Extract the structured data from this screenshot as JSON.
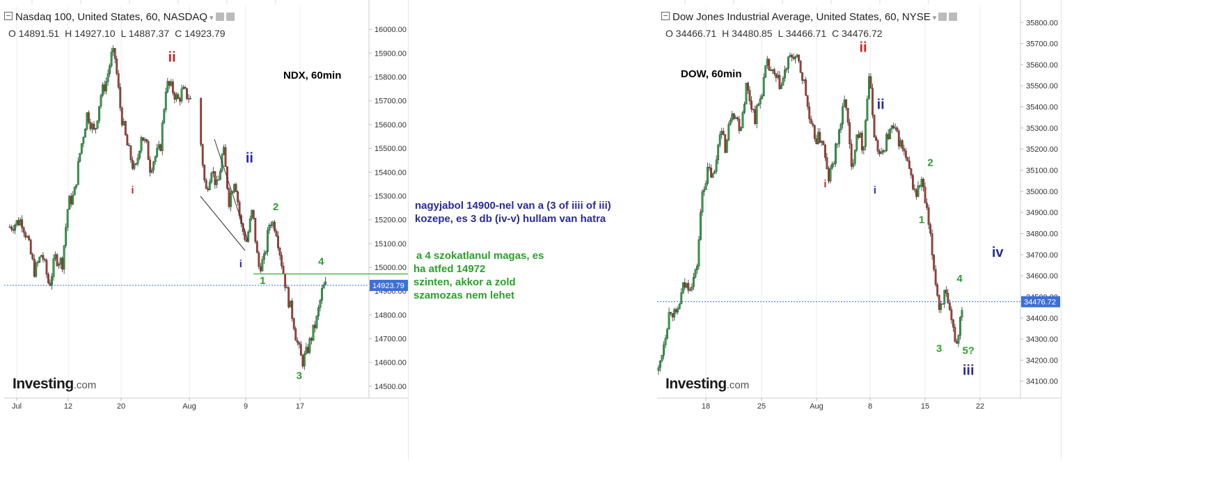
{
  "left": {
    "header": {
      "title": "Nasdaq 100, United States, 60, NASDAQ"
    },
    "ohlc": {
      "open": "O 14891.51",
      "high": "H 14927.10",
      "low": "L 14887.37",
      "close": "C 14923.79"
    },
    "tag": "NDX, 60min",
    "logo": {
      "brand": "Investing",
      "suffix": ".com"
    }
  },
  "right": {
    "header": {
      "title": "Dow Jones Industrial Average, United States, 60, NYSE"
    },
    "ohlc": {
      "open": "O 34466.71",
      "high": "H 34480.85",
      "low": "L 34466.71",
      "close": "C 34476.72"
    },
    "tag": "DOW, 60min",
    "logo": {
      "brand": "Investing",
      "suffix": ".com"
    }
  },
  "notes": {
    "blue": [
      "nagyjabol 14900-nel van a (3 of iiii of iii)",
      "kozepe, es 3 db (iv-v) hullam van hatra"
    ],
    "green": [
      "a 4 szokatlanul magas, es",
      "ha atfed 14972",
      "szinten, akkor a zold",
      "szamozas nem lehet"
    ]
  },
  "colors": {
    "up": "#26a641",
    "down": "#b03a2e",
    "wave_red": "#cc2222",
    "wave_blue": "#2a2aa8",
    "wave_green": "#2aa12a",
    "price_tag": "#3d6fd6"
  },
  "chart_data": [
    {
      "type": "candlestick",
      "title": "Nasdaq 100, United States, 60, NASDAQ",
      "ylim": [
        14450,
        16100
      ],
      "yticks": [
        16000,
        15900,
        15800,
        15700,
        15600,
        15500,
        15400,
        15300,
        15200,
        15100,
        15000,
        14900,
        14800,
        14700,
        14600,
        14500
      ],
      "x_labels": [
        "Jul",
        "12",
        "20",
        "Aug",
        "9",
        "17"
      ],
      "last_price": 14923.79,
      "last_price_label": "14923.79",
      "path": [
        [
          0,
          15170
        ],
        [
          8,
          15200
        ],
        [
          12,
          15120
        ],
        [
          17,
          14980
        ],
        [
          22,
          15060
        ],
        [
          27,
          14920
        ],
        [
          31,
          15040
        ],
        [
          36,
          15020
        ],
        [
          40,
          15270
        ],
        [
          44,
          15300
        ],
        [
          48,
          15480
        ],
        [
          53,
          15650
        ],
        [
          58,
          15560
        ],
        [
          62,
          15720
        ],
        [
          66,
          15780
        ],
        [
          70,
          15900
        ],
        [
          72,
          15880
        ],
        [
          76,
          15650
        ],
        [
          80,
          15520
        ],
        [
          84,
          15430
        ],
        [
          86,
          15400
        ],
        [
          90,
          15560
        ],
        [
          94,
          15500
        ],
        [
          96,
          15420
        ],
        [
          99,
          15460
        ],
        [
          103,
          15500
        ],
        [
          107,
          15770
        ],
        [
          111,
          15750
        ],
        [
          115,
          15700
        ],
        [
          118,
          15740
        ],
        [
          122,
          15720
        ],
        [
          124,
          15700
        ],
        [
          130,
          15570
        ],
        [
          134,
          15310
        ],
        [
          138,
          15420
        ],
        [
          142,
          15330
        ],
        [
          146,
          15500
        ],
        [
          150,
          15280
        ],
        [
          154,
          15380
        ],
        [
          158,
          15180
        ],
        [
          162,
          15110
        ],
        [
          166,
          15240
        ],
        [
          170,
          15000
        ],
        [
          174,
          15030
        ],
        [
          178,
          15200
        ],
        [
          182,
          15170
        ],
        [
          186,
          15020
        ],
        [
          190,
          14880
        ],
        [
          194,
          14780
        ],
        [
          196,
          14700
        ],
        [
          200,
          14600
        ],
        [
          203,
          14640
        ],
        [
          206,
          14700
        ],
        [
          210,
          14780
        ],
        [
          214,
          14910
        ],
        [
          216,
          14923
        ]
      ],
      "waves": [
        {
          "label": "ii",
          "x": 111,
          "price": 15865,
          "color": "red"
        },
        {
          "label": "i",
          "x": 84,
          "price": 15310,
          "color": "red"
        },
        {
          "label": "ii",
          "x": 164,
          "price": 15440,
          "color": "blue"
        },
        {
          "label": "i",
          "x": 158,
          "price": 15000,
          "color": "blue"
        },
        {
          "label": "2",
          "x": 182,
          "price": 15240,
          "color": "green"
        },
        {
          "label": "1",
          "x": 173,
          "price": 14930,
          "color": "green"
        },
        {
          "label": "4",
          "x": 213,
          "price": 15010,
          "color": "green"
        },
        {
          "label": "3",
          "x": 198,
          "price": 14530,
          "color": "green"
        }
      ],
      "level_line": 14972
    },
    {
      "type": "candlestick",
      "title": "Dow Jones Industrial Average, United States, 60, NYSE",
      "ylim": [
        34020,
        35880
      ],
      "yticks": [
        35800,
        35700,
        35600,
        35500,
        35400,
        35300,
        35200,
        35100,
        35000,
        34900,
        34800,
        34700,
        34600,
        34500,
        34400,
        34300,
        34200,
        34100
      ],
      "x_labels": [
        "18",
        "25",
        "Aug",
        "8",
        "15",
        "22"
      ],
      "last_price": 34476.72,
      "last_price_label": "34476.72",
      "path": [
        [
          0,
          34150
        ],
        [
          4,
          34300
        ],
        [
          8,
          34450
        ],
        [
          12,
          34400
        ],
        [
          17,
          34550
        ],
        [
          22,
          34560
        ],
        [
          26,
          34620
        ],
        [
          30,
          35000
        ],
        [
          34,
          35100
        ],
        [
          38,
          35060
        ],
        [
          42,
          35300
        ],
        [
          46,
          35200
        ],
        [
          50,
          35400
        ],
        [
          56,
          35300
        ],
        [
          60,
          35500
        ],
        [
          66,
          35350
        ],
        [
          70,
          35450
        ],
        [
          74,
          35600
        ],
        [
          80,
          35530
        ],
        [
          84,
          35500
        ],
        [
          88,
          35600
        ],
        [
          92,
          35650
        ],
        [
          96,
          35600
        ],
        [
          100,
          35500
        ],
        [
          104,
          35300
        ],
        [
          108,
          35250
        ],
        [
          112,
          35250
        ],
        [
          116,
          35050
        ],
        [
          120,
          35150
        ],
        [
          124,
          35300
        ],
        [
          128,
          35450
        ],
        [
          132,
          35100
        ],
        [
          136,
          35300
        ],
        [
          140,
          35200
        ],
        [
          144,
          35550
        ],
        [
          148,
          35250
        ],
        [
          152,
          35150
        ],
        [
          156,
          35250
        ],
        [
          160,
          35300
        ],
        [
          164,
          35250
        ],
        [
          168,
          35180
        ],
        [
          172,
          35080
        ],
        [
          176,
          34980
        ],
        [
          180,
          35050
        ],
        [
          184,
          34880
        ],
        [
          188,
          34660
        ],
        [
          192,
          34450
        ],
        [
          196,
          34520
        ],
        [
          200,
          34380
        ],
        [
          204,
          34280
        ],
        [
          208,
          34480
        ]
      ],
      "waves": [
        {
          "label": "ii",
          "x": 140,
          "price": 35660,
          "color": "red"
        },
        {
          "label": "i",
          "x": 114,
          "price": 35020,
          "color": "red"
        },
        {
          "label": "ii",
          "x": 152,
          "price": 35390,
          "color": "blue"
        },
        {
          "label": "i",
          "x": 148,
          "price": 34990,
          "color": "blue"
        },
        {
          "label": "2",
          "x": 186,
          "price": 35120,
          "color": "green"
        },
        {
          "label": "1",
          "x": 180,
          "price": 34850,
          "color": "green"
        },
        {
          "label": "4",
          "x": 206,
          "price": 34570,
          "color": "green"
        },
        {
          "label": "3",
          "x": 192,
          "price": 34240,
          "color": "green"
        },
        {
          "label": "5?",
          "x": 212,
          "price": 34230,
          "color": "green"
        },
        {
          "label": "iii",
          "x": 212,
          "price": 34130,
          "color": "blue"
        },
        {
          "label": "iv",
          "x": 232,
          "price": 34690,
          "color": "blue"
        }
      ]
    }
  ]
}
